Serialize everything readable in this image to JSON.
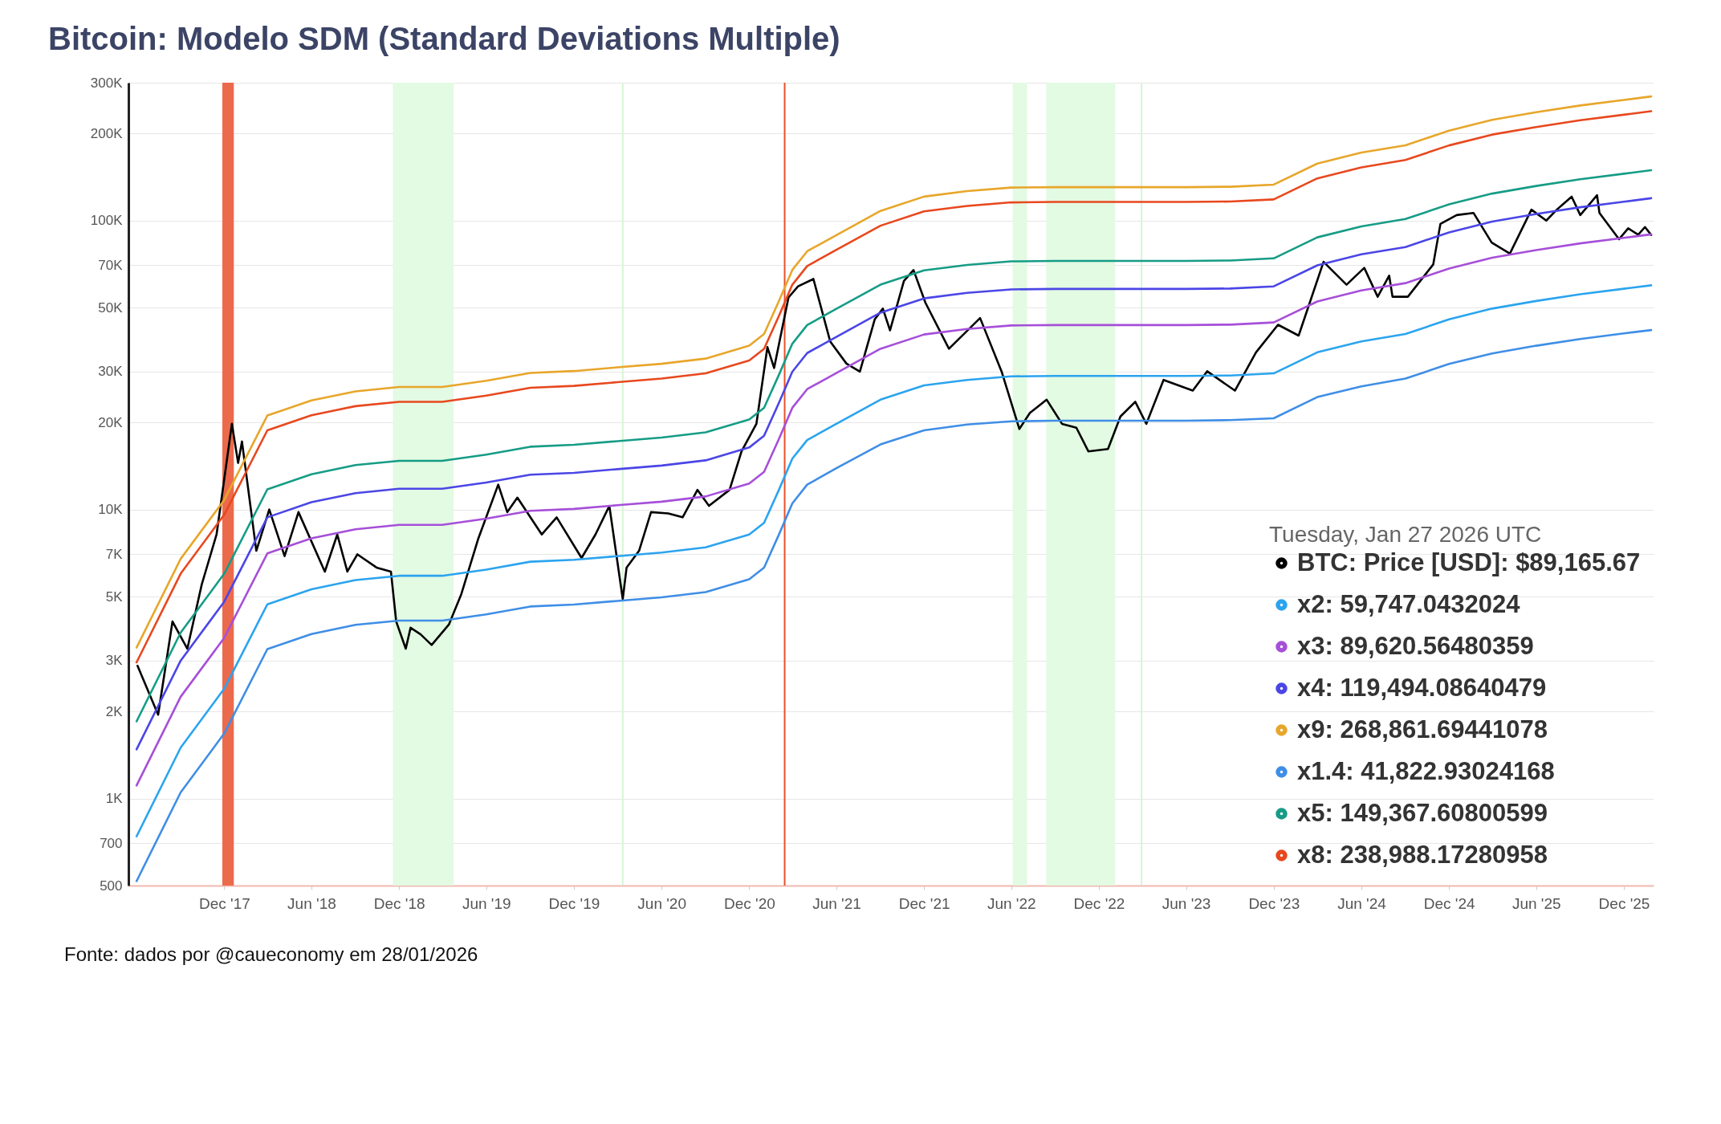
{
  "chart_data": {
    "type": "line",
    "title": "Bitcoin: Modelo SDM (Standard Deviations Multiple)",
    "legend_title": "Tuesday, Jan 27 2026 UTC",
    "legend": "bottom right",
    "grid": "y",
    "log": "y",
    "xlim": [
      "2017-05-15",
      "2026-02-01"
    ],
    "xticks": [
      {
        "value": "2017-12-01",
        "label": "Dec '17"
      },
      {
        "value": "2018-06-01",
        "label": "Jun '18"
      },
      {
        "value": "2018-12-01",
        "label": "Dec '18"
      },
      {
        "value": "2019-06-01",
        "label": "Jun '19"
      },
      {
        "value": "2019-12-01",
        "label": "Dec '19"
      },
      {
        "value": "2020-06-01",
        "label": "Jun '20"
      },
      {
        "value": "2020-12-01",
        "label": "Dec '20"
      },
      {
        "value": "2021-06-01",
        "label": "Jun '21"
      },
      {
        "value": "2021-12-01",
        "label": "Dec '21"
      },
      {
        "value": "2022-06-01",
        "label": "Jun '22"
      },
      {
        "value": "2022-12-01",
        "label": "Dec '22"
      },
      {
        "value": "2023-06-01",
        "label": "Jun '23"
      },
      {
        "value": "2023-12-01",
        "label": "Dec '23"
      },
      {
        "value": "2024-06-01",
        "label": "Jun '24"
      },
      {
        "value": "2024-12-01",
        "label": "Dec '24"
      },
      {
        "value": "2025-06-01",
        "label": "Jun '25"
      },
      {
        "value": "2025-12-01",
        "label": "Dec '25"
      }
    ],
    "ylim": [
      500,
      300000
    ],
    "yticks": [
      500,
      700,
      {
        "value": 1000,
        "label": "1K"
      },
      {
        "value": 2000,
        "label": "2K"
      },
      {
        "value": 3000,
        "label": "3K"
      },
      {
        "value": 5000,
        "label": "5K"
      },
      {
        "value": 7000,
        "label": "7K"
      },
      {
        "value": 10000,
        "label": "10K"
      },
      {
        "value": 20000,
        "label": "20K"
      },
      {
        "value": 30000,
        "label": "30K"
      },
      {
        "value": 50000,
        "label": "50K"
      },
      {
        "value": 70000,
        "label": "70K"
      },
      {
        "value": 100000,
        "label": "100K"
      },
      {
        "value": 200000,
        "label": "200K"
      },
      {
        "value": 300000,
        "label": "300K"
      }
    ],
    "x": [
      "2017-06-01",
      "2017-09-01",
      "2017-12-01",
      "2018-03-01",
      "2018-06-01",
      "2018-09-01",
      "2018-12-01",
      "2019-03-01",
      "2019-06-01",
      "2019-09-01",
      "2019-12-01",
      "2020-03-01",
      "2020-06-01",
      "2020-09-01",
      "2020-12-01",
      "2021-01-01",
      "2021-02-01",
      "2021-03-01",
      "2021-04-01",
      "2021-06-01",
      "2021-09-01",
      "2021-12-01",
      "2022-03-01",
      "2022-06-01",
      "2022-09-01",
      "2022-12-01",
      "2023-03-01",
      "2023-06-01",
      "2023-09-01",
      "2023-12-01",
      "2024-03-01",
      "2024-06-01",
      "2024-09-01",
      "2024-12-01",
      "2025-03-01",
      "2025-06-01",
      "2025-09-01",
      "2025-12-01",
      "2026-01-27"
    ],
    "series": [
      {
        "name": "BTC: Price [USD]: $89,165.67",
        "color": "#000000",
        "x": [
          "2017-06-03",
          "2017-07-16",
          "2017-08-15",
          "2017-09-15",
          "2017-10-15",
          "2017-11-15",
          "2017-12-17",
          "2017-12-30",
          "2018-01-07",
          "2018-02-06",
          "2018-03-05",
          "2018-04-06",
          "2018-05-05",
          "2018-06-29",
          "2018-07-25",
          "2018-08-15",
          "2018-09-05",
          "2018-10-15",
          "2018-11-14",
          "2018-11-25",
          "2018-12-15",
          "2018-12-25",
          "2019-01-15",
          "2019-02-07",
          "2019-03-15",
          "2019-04-10",
          "2019-05-15",
          "2019-06-26",
          "2019-07-15",
          "2019-08-05",
          "2019-09-25",
          "2019-10-26",
          "2019-12-17",
          "2020-01-15",
          "2020-02-13",
          "2020-03-12",
          "2020-03-20",
          "2020-04-15",
          "2020-05-10",
          "2020-06-15",
          "2020-07-15",
          "2020-08-15",
          "2020-09-08",
          "2020-10-21",
          "2020-11-15",
          "2020-12-16",
          "2021-01-08",
          "2021-01-22",
          "2021-02-21",
          "2021-03-13",
          "2021-04-14",
          "2021-05-19",
          "2021-06-22",
          "2021-07-20",
          "2021-08-20",
          "2021-09-06",
          "2021-09-21",
          "2021-10-20",
          "2021-11-09",
          "2021-12-04",
          "2022-01-22",
          "2022-03-28",
          "2022-05-12",
          "2022-06-18",
          "2022-07-10",
          "2022-08-14",
          "2022-09-15",
          "2022-10-15",
          "2022-11-09",
          "2022-12-20",
          "2023-01-15",
          "2023-02-15",
          "2023-03-10",
          "2023-04-15",
          "2023-06-15",
          "2023-07-15",
          "2023-09-11",
          "2023-10-25",
          "2023-12-10",
          "2024-01-22",
          "2024-03-14",
          "2024-05-01",
          "2024-06-07",
          "2024-07-05",
          "2024-07-29",
          "2024-08-05",
          "2024-09-06",
          "2024-10-29",
          "2024-11-13",
          "2024-12-17",
          "2025-01-21",
          "2025-02-28",
          "2025-04-07",
          "2025-05-22",
          "2025-06-22",
          "2025-07-14",
          "2025-08-14",
          "2025-09-01",
          "2025-10-06",
          "2025-10-11",
          "2025-11-21",
          "2025-12-10",
          "2025-12-31",
          "2026-01-14",
          "2026-01-27"
        ],
        "values": [
          2880,
          1950,
          4100,
          3300,
          5500,
          8200,
          19800,
          14500,
          17200,
          7200,
          10000,
          6900,
          9800,
          6100,
          8200,
          6100,
          7000,
          6300,
          6100,
          4100,
          3300,
          3900,
          3700,
          3400,
          4000,
          5100,
          7900,
          12200,
          9800,
          11000,
          8200,
          9400,
          6800,
          8200,
          10300,
          4900,
          6300,
          7200,
          9800,
          9700,
          9400,
          11700,
          10300,
          11700,
          15900,
          19800,
          36500,
          30900,
          54200,
          59200,
          62800,
          38200,
          32000,
          30000,
          45500,
          49600,
          41700,
          61800,
          67400,
          51900,
          36000,
          46000,
          30000,
          19000,
          21600,
          24000,
          19800,
          19200,
          15900,
          16200,
          21000,
          23600,
          19800,
          28100,
          25800,
          30100,
          25800,
          35000,
          43600,
          40000,
          72000,
          60000,
          68600,
          54500,
          64500,
          54500,
          54500,
          70500,
          97400,
          104500,
          106300,
          83900,
          76900,
          109100,
          100000,
          109100,
          121000,
          104500,
          122400,
          106300,
          86200,
          94000,
          89300,
          95000,
          89166
        ]
      },
      {
        "name": "x2: 59,747.0432024",
        "color": "#2ba4ef",
        "values": [
          740,
          1500,
          2400,
          4700,
          5300,
          5700,
          5900,
          5900,
          6200,
          6600,
          6700,
          6900,
          7100,
          7400,
          8200,
          9000,
          11700,
          15000,
          17400,
          19800,
          24000,
          26900,
          28100,
          28900,
          29000,
          29000,
          29000,
          29000,
          29100,
          29600,
          35000,
          38200,
          40500,
          45500,
          49600,
          52700,
          55600,
          58100,
          59700
        ]
      },
      {
        "name": "x3: 89,620.56480359",
        "color": "#a64fd9",
        "values": [
          1110,
          2250,
          3600,
          7050,
          7950,
          8550,
          8850,
          8850,
          9300,
          9900,
          10050,
          10350,
          10650,
          11100,
          12300,
          13500,
          17550,
          22500,
          26100,
          29700,
          36000,
          40350,
          42150,
          43350,
          43500,
          43500,
          43500,
          43500,
          43650,
          44400,
          52500,
          57300,
          60750,
          68250,
          74400,
          79050,
          83400,
          87150,
          89600
        ]
      },
      {
        "name": "x4: 119,494.08640479",
        "color": "#4b46e6",
        "values": [
          1480,
          3000,
          4800,
          9400,
          10600,
          11400,
          11800,
          11800,
          12400,
          13200,
          13400,
          13800,
          14200,
          14800,
          16400,
          18000,
          23400,
          30000,
          34800,
          39600,
          48000,
          53800,
          56200,
          57800,
          58000,
          58000,
          58000,
          58000,
          58200,
          59200,
          70000,
          76400,
          81000,
          91000,
          99200,
          105400,
          111200,
          116200,
          119500
        ]
      },
      {
        "name": "x9: 268,861.69441078",
        "color": "#e8a62a",
        "values": [
          3330,
          6750,
          10800,
          21150,
          23850,
          25650,
          26550,
          26550,
          27900,
          29700,
          30150,
          31050,
          31950,
          33300,
          36900,
          40500,
          52650,
          67500,
          78300,
          89100,
          108000,
          121050,
          126450,
          130050,
          130500,
          130500,
          130500,
          130500,
          130950,
          133200,
          157500,
          171900,
          182250,
          204750,
          223200,
          237150,
          250200,
          261450,
          268900
        ]
      },
      {
        "name": "x1.4: 41,822.93024168",
        "color": "#3f8ee6",
        "values": [
          518,
          1050,
          1680,
          3290,
          3710,
          3990,
          4130,
          4130,
          4340,
          4620,
          4690,
          4830,
          4970,
          5180,
          5740,
          6300,
          8190,
          10500,
          12200,
          13900,
          16800,
          18800,
          19700,
          20200,
          20300,
          20300,
          20300,
          20300,
          20400,
          20700,
          24500,
          26700,
          28400,
          31900,
          34700,
          36900,
          38900,
          40700,
          41800
        ]
      },
      {
        "name": "x5: 149,367.60800599",
        "color": "#169c86",
        "values": [
          1850,
          3750,
          6000,
          11750,
          13250,
          14250,
          14750,
          14750,
          15500,
          16500,
          16750,
          17250,
          17750,
          18500,
          20500,
          22500,
          29250,
          37500,
          43500,
          49500,
          60000,
          67250,
          70250,
          72250,
          72500,
          72500,
          72500,
          72500,
          72750,
          74000,
          87500,
          95500,
          101250,
          113750,
          124000,
          131750,
          139000,
          145250,
          149400
        ]
      },
      {
        "name": "x8: 238,988.17280958",
        "color": "#e8481e",
        "values": [
          2960,
          6000,
          9600,
          18800,
          21200,
          22800,
          23600,
          23600,
          24800,
          26400,
          26800,
          27600,
          28400,
          29600,
          32800,
          36000,
          46800,
          60000,
          69600,
          79200,
          96000,
          107600,
          112400,
          115600,
          116000,
          116000,
          116000,
          116000,
          116400,
          118400,
          140000,
          152800,
          162000,
          182000,
          198400,
          210800,
          222400,
          232400,
          239000
        ]
      }
    ],
    "bands": [
      {
        "axis": "x",
        "from": "2017-11-27",
        "to": "2017-12-21",
        "color": "#ec6a4c"
      },
      {
        "axis": "x",
        "from": "2018-11-18",
        "to": "2019-03-25",
        "color": "#e3fae3"
      },
      {
        "axis": "x",
        "from": "2022-06-04",
        "to": "2022-07-04",
        "color": "#e3fae3"
      },
      {
        "axis": "x",
        "from": "2022-08-13",
        "to": "2023-01-04",
        "color": "#e3fae3"
      }
    ],
    "ref_lines": [
      {
        "axis": "x",
        "value": "2021-02-13",
        "color": "#e8502a"
      },
      {
        "axis": "x",
        "value": "2020-03-12",
        "color": "#d6f5d6"
      },
      {
        "axis": "x",
        "value": "2023-02-28",
        "color": "#d6f5d6"
      }
    ],
    "annotations": [
      "Fonte: dados por @caueconomy em 28/01/2026"
    ]
  }
}
